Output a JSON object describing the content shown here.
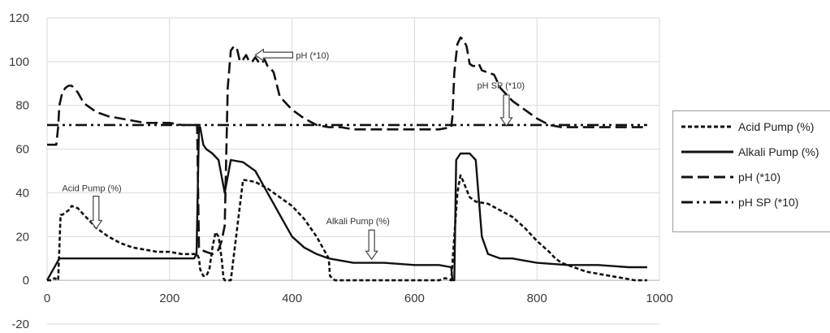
{
  "chart_data": {
    "type": "line",
    "title": "",
    "xlabel": "",
    "ylabel": "",
    "xlim": [
      0,
      1000
    ],
    "ylim": [
      -20,
      120
    ],
    "x_ticks": [
      "0",
      "200",
      "400",
      "600",
      "800",
      "1000"
    ],
    "y_ticks": [
      "120",
      "100",
      "80",
      "60",
      "40",
      "20",
      "0",
      "-20"
    ],
    "grid": true,
    "legend_position": "right",
    "series": [
      {
        "name": "Acid Pump (%)",
        "style": "short-dash",
        "color": "#111111",
        "x": [
          0,
          8,
          12,
          18,
          22,
          25,
          30,
          35,
          40,
          50,
          60,
          70,
          80,
          100,
          120,
          140,
          160,
          180,
          200,
          220,
          240,
          245,
          248,
          250,
          255,
          260,
          265,
          270,
          275,
          280,
          285,
          288,
          290,
          295,
          300,
          320,
          340,
          360,
          380,
          400,
          420,
          440,
          460,
          462,
          470,
          480,
          500,
          520,
          540,
          560,
          580,
          600,
          620,
          640,
          650,
          660,
          665,
          670,
          675,
          680,
          690,
          700,
          720,
          740,
          760,
          780,
          800,
          820,
          830,
          840,
          860,
          880,
          900,
          920,
          940,
          960,
          980
        ],
        "y": [
          0,
          0,
          1,
          0,
          30,
          30,
          31,
          32,
          34,
          33,
          30,
          27,
          24,
          20,
          17,
          15,
          14,
          13,
          13,
          12,
          12,
          12,
          10,
          5,
          2,
          2,
          5,
          15,
          22,
          20,
          10,
          1,
          0,
          0,
          0,
          46,
          45,
          42,
          38,
          34,
          28,
          20,
          10,
          2,
          0,
          0,
          0,
          0,
          0,
          0,
          0,
          0,
          0,
          0,
          1,
          0,
          20,
          40,
          48,
          45,
          38,
          36,
          35,
          32,
          29,
          24,
          18,
          13,
          10,
          8,
          6,
          4,
          3,
          2,
          1,
          0,
          0
        ]
      },
      {
        "name": "Alkali Pump (%)",
        "style": "solid",
        "color": "#111111",
        "x": [
          0,
          20,
          30,
          40,
          60,
          80,
          100,
          150,
          200,
          240,
          244,
          248,
          250,
          255,
          260,
          270,
          280,
          290,
          300,
          320,
          340,
          360,
          380,
          400,
          420,
          440,
          460,
          500,
          550,
          600,
          640,
          660,
          662,
          665,
          668,
          675,
          690,
          700,
          710,
          720,
          740,
          760,
          780,
          800,
          850,
          900,
          950,
          980
        ],
        "y": [
          0,
          10,
          10,
          10,
          10,
          10,
          10,
          10,
          10,
          10,
          12,
          70,
          70,
          62,
          60,
          58,
          55,
          40,
          55,
          54,
          50,
          40,
          30,
          20,
          15,
          12,
          10,
          8,
          8,
          7,
          7,
          6,
          0,
          0,
          55,
          58,
          58,
          55,
          20,
          12,
          10,
          10,
          9,
          8,
          7,
          7,
          6,
          6
        ]
      },
      {
        "name": "pH (*10)",
        "style": "long-dash",
        "color": "#111111",
        "x": [
          0,
          8,
          15,
          18,
          20,
          25,
          30,
          35,
          40,
          50,
          60,
          80,
          100,
          120,
          140,
          160,
          180,
          200,
          220,
          240,
          245,
          248,
          250,
          260,
          270,
          280,
          285,
          290,
          295,
          300,
          305,
          310,
          315,
          320,
          325,
          330,
          335,
          340,
          345,
          350,
          355,
          360,
          365,
          370,
          380,
          400,
          420,
          440,
          460,
          480,
          500,
          550,
          600,
          640,
          660,
          662,
          665,
          670,
          675,
          680,
          685,
          690,
          695,
          700,
          705,
          710,
          720,
          730,
          740,
          760,
          780,
          800,
          820,
          840,
          860,
          880,
          900,
          920,
          940,
          960,
          980
        ],
        "y": [
          62,
          62,
          62,
          70,
          80,
          86,
          88,
          89,
          89,
          86,
          81,
          77,
          75,
          74,
          73,
          72,
          72,
          72,
          71,
          71,
          71,
          15,
          14,
          13,
          12,
          14,
          18,
          25,
          88,
          105,
          107,
          106,
          100,
          101,
          103,
          100,
          100,
          102,
          100,
          99,
          101,
          98,
          97,
          95,
          84,
          78,
          74,
          71,
          70,
          70,
          69,
          69,
          69,
          69,
          70,
          75,
          95,
          108,
          111,
          110,
          107,
          99,
          98,
          98,
          99,
          96,
          95,
          94,
          88,
          82,
          78,
          74,
          71,
          70,
          70,
          70,
          70,
          70,
          70,
          70,
          70
        ]
      },
      {
        "name": "pH SP (*10)",
        "style": "dash-dot-dot",
        "color": "#111111",
        "x": [
          0,
          980
        ],
        "y": [
          71,
          71
        ]
      }
    ],
    "annotations": [
      {
        "text": "pH (*10)",
        "x": 340,
        "y": 103
      },
      {
        "text": "pH SP (*10)",
        "x": 750,
        "y": 71
      },
      {
        "text": "Acid Pump (%)",
        "x": 80,
        "y": 24
      },
      {
        "text": "Alkali Pump (%)",
        "x": 530,
        "y": 10
      }
    ]
  }
}
